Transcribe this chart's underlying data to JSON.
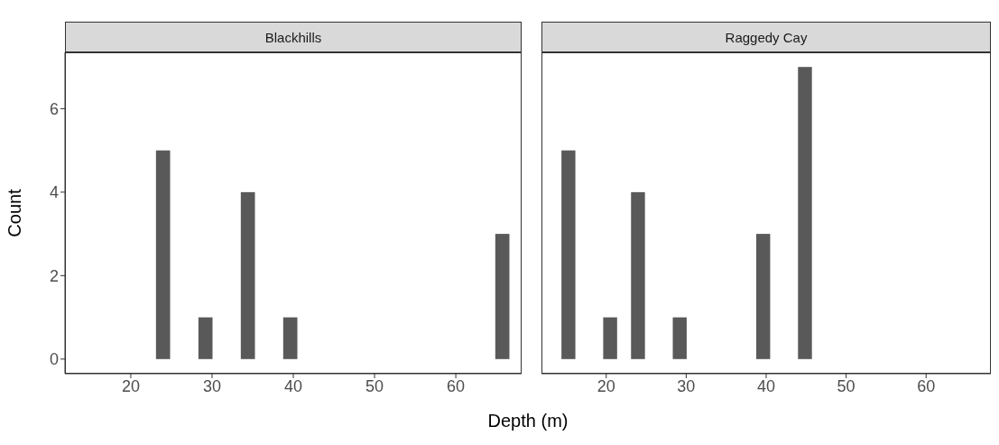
{
  "chart_data": [
    {
      "type": "histogram",
      "title": "Blackhills",
      "ylabel": "Count",
      "xlabel": "Depth (m)",
      "color": "#595959",
      "bins": [
        14.4,
        16.14,
        17.88,
        19.62,
        21.36,
        23.1,
        24.84,
        26.58,
        28.32,
        30.06,
        31.8,
        33.54,
        35.28,
        37.02,
        38.76,
        40.5,
        42.24,
        43.98,
        45.72,
        47.46,
        49.2,
        50.94,
        52.68,
        54.42,
        56.16,
        57.9,
        59.64,
        61.38,
        63.12,
        64.86,
        66.6
      ],
      "values": [
        0,
        0,
        0,
        0,
        0,
        5,
        0,
        0,
        1,
        0,
        0,
        4,
        0,
        0,
        1,
        0,
        0,
        0,
        0,
        0,
        0,
        0,
        0,
        0,
        0,
        0,
        0,
        0,
        0,
        3
      ],
      "xlim": [
        11.9,
        68.1
      ],
      "xticks": [
        20,
        30,
        40,
        50,
        60
      ],
      "ylim": [
        -0.35,
        7.35
      ],
      "yticks": [
        0,
        2,
        4,
        6
      ]
    },
    {
      "type": "histogram",
      "title": "Raggedy Cay",
      "color": "#595959",
      "tick_labels": "x",
      "bins": [
        14.4,
        16.14,
        17.88,
        19.62,
        21.36,
        23.1,
        24.84,
        26.58,
        28.32,
        30.06,
        31.8,
        33.54,
        35.28,
        37.02,
        38.76,
        40.5,
        42.24,
        43.98,
        45.72,
        47.46,
        49.2,
        50.94,
        52.68,
        54.42,
        56.16,
        57.9,
        59.64,
        61.38,
        63.12,
        64.86,
        66.6
      ],
      "values": [
        5,
        0,
        0,
        1,
        0,
        4,
        0,
        0,
        1,
        0,
        0,
        0,
        0,
        0,
        3,
        0,
        0,
        7,
        0,
        0,
        0,
        0,
        0,
        0,
        0,
        0,
        0,
        0,
        0,
        0
      ],
      "xlim": [
        11.9,
        68.1
      ],
      "xticks": [
        20,
        30,
        40,
        50,
        60
      ],
      "ylim": [
        -0.35,
        7.35
      ],
      "yticks": [
        0,
        2,
        4,
        6
      ]
    }
  ]
}
